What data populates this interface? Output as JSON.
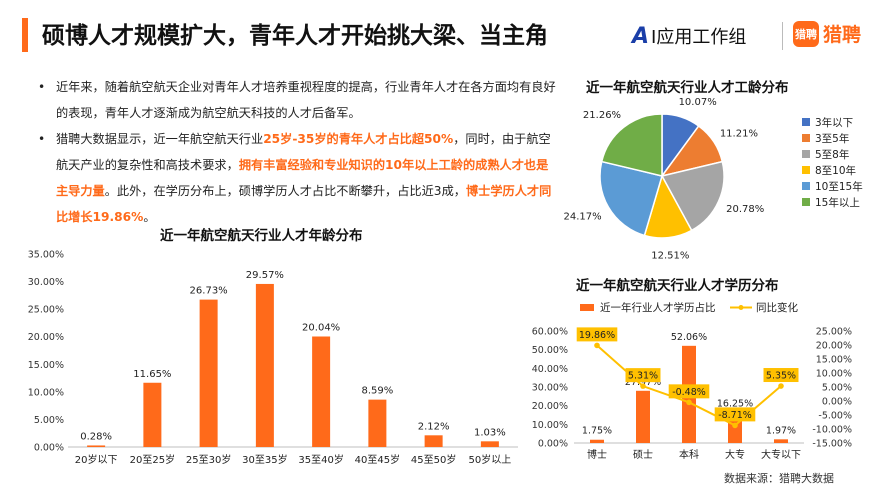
{
  "header": {
    "title": "硕博人才规模扩大，青年人才开始挑大梁、当主角",
    "logo_ai_mark": "A",
    "logo_ai_text": "I应用工作组",
    "logo_lp_icon": "猎聘",
    "logo_lp_text": "猎聘"
  },
  "bullets": [
    {
      "dot": "•",
      "segments": [
        {
          "text": "近年来，随着航空航天企业对青年人才培养重视程度的提高，行业青年人才在各方面均有良好的表现，青年人才逐渐成为航空航天科技的人才后备军。",
          "highlight": false
        }
      ]
    },
    {
      "dot": "•",
      "segments": [
        {
          "text": "猎聘大数据显示，近一年航空航天行业",
          "highlight": false
        },
        {
          "text": "25岁-35岁的青年人才占比超50%",
          "highlight": true
        },
        {
          "text": "，同时，由于航空航天产业的复杂性和高技术要求，",
          "highlight": false
        },
        {
          "text": "拥有丰富经验和专业知识的10年以上工龄的成熟人才也是主导力量",
          "highlight": true
        },
        {
          "text": "。此外，在学历分布上，硕博学历人才占比不断攀升，占比近3成，",
          "highlight": false
        },
        {
          "text": "博士学历人才同比增长19.86%",
          "highlight": true
        },
        {
          "text": "。",
          "highlight": false
        }
      ]
    }
  ],
  "source": "数据来源：猎聘大数据",
  "colors": {
    "accent": "#ff6a1a",
    "line": "#ffc000",
    "label_box": "#ffc000"
  },
  "chart_data": [
    {
      "type": "bar",
      "title": "近一年航空航天行业人才年龄分布",
      "categories": [
        "20岁以下",
        "20至25岁",
        "25至30岁",
        "30至35岁",
        "35至40岁",
        "40至45岁",
        "45至50岁",
        "50岁以上"
      ],
      "values": [
        0.28,
        11.65,
        26.73,
        29.57,
        20.04,
        8.59,
        2.12,
        1.03
      ],
      "value_labels": [
        "0.28%",
        "11.65%",
        "26.73%",
        "29.57%",
        "20.04%",
        "8.59%",
        "2.12%",
        "1.03%"
      ],
      "yticks": [
        "0.00%",
        "5.00%",
        "10.00%",
        "15.00%",
        "20.00%",
        "25.00%",
        "30.00%",
        "35.00%"
      ],
      "ylim": [
        0,
        35
      ],
      "color": "#ff6a1a"
    },
    {
      "type": "pie",
      "title": "近一年航空航天行业人才工龄分布",
      "categories": [
        "3年以下",
        "3至5年",
        "5至8年",
        "8至10年",
        "10至15年",
        "15年以上"
      ],
      "values": [
        10.07,
        11.21,
        20.78,
        12.51,
        24.17,
        21.26
      ],
      "value_labels": [
        "10.07%",
        "11.21%",
        "20.78%",
        "12.51%",
        "24.17%",
        "21.26%"
      ],
      "colors": [
        "#4472c4",
        "#ed7d31",
        "#a5a5a5",
        "#ffc000",
        "#5b9bd5",
        "#70ad47"
      ]
    },
    {
      "type": "bar+line",
      "title": "近一年航空航天行业人才学历分布",
      "categories": [
        "博士",
        "硕士",
        "本科",
        "大专",
        "大专以下"
      ],
      "series": [
        {
          "name": "近一年行业人才学历占比",
          "type": "bar",
          "axis": "left",
          "values": [
            1.75,
            27.97,
            52.06,
            16.25,
            1.97
          ],
          "value_labels": [
            "1.75%",
            "27.97%",
            "52.06%",
            "16.25%",
            "1.97%"
          ]
        },
        {
          "name": "同比变化",
          "type": "line",
          "axis": "right",
          "values": [
            19.86,
            5.31,
            -0.48,
            -8.71,
            5.35
          ],
          "value_labels": [
            "19.86%",
            "5.31%",
            "-0.48%",
            "-8.71%",
            "5.35%"
          ]
        }
      ],
      "yticks_left": [
        "0.00%",
        "10.00%",
        "20.00%",
        "30.00%",
        "40.00%",
        "50.00%",
        "60.00%"
      ],
      "ylim_left": [
        0,
        60
      ],
      "yticks_right": [
        "-15.00%",
        "-10.00%",
        "-5.00%",
        "0.00%",
        "5.00%",
        "10.00%",
        "15.00%",
        "20.00%",
        "25.00%"
      ],
      "ylim_right": [
        -15,
        25
      ]
    }
  ]
}
